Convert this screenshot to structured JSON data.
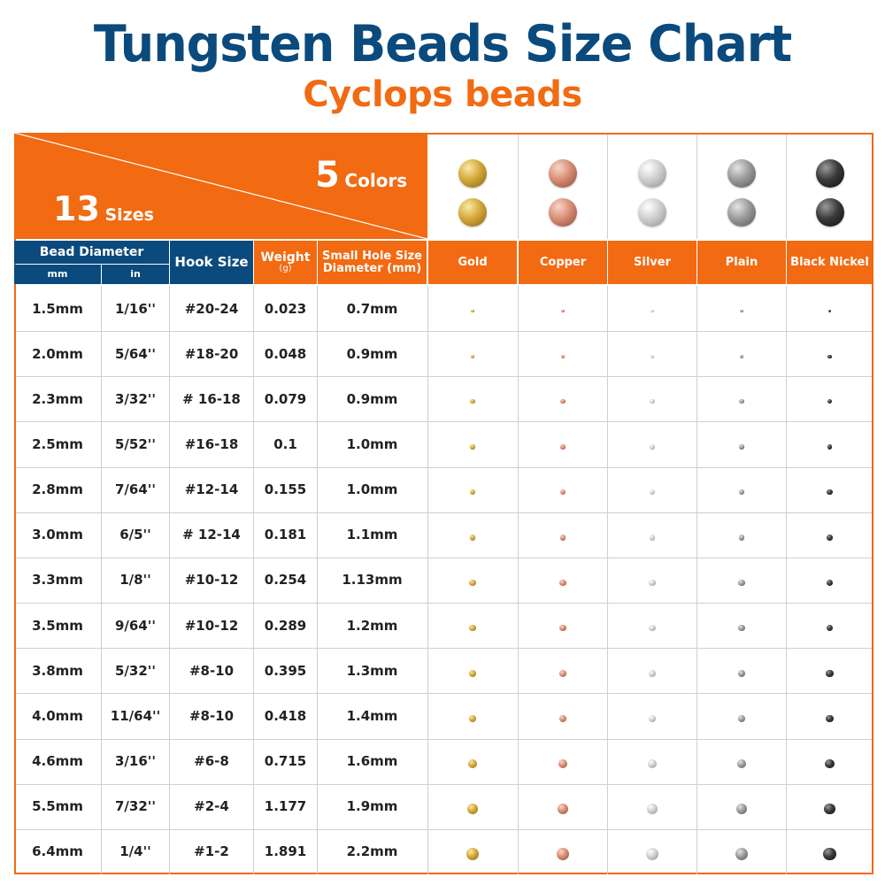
{
  "title": "Tungsten Beads Size Chart",
  "subtitle": "Cyclops beads",
  "corner": {
    "colors_num": "5",
    "colors_word": "Colors",
    "sizes_num": "13",
    "sizes_word": "Sizes"
  },
  "headers": {
    "bead_diameter": "Bead Diameter",
    "mm": "mm",
    "in": "in",
    "hook_size": "Hook Size",
    "weight": "Weight",
    "weight_unit": "(g)",
    "hole_line1": "Small Hole Size",
    "hole_line2": "Diameter (mm)"
  },
  "colors": [
    {
      "name": "Gold",
      "hex": "#d4a83a",
      "light": "#fbe9a8",
      "dark": "#8a6410"
    },
    {
      "name": "Copper",
      "hex": "#d88d76",
      "light": "#f8d6c8",
      "dark": "#8c4a36"
    },
    {
      "name": "Silver",
      "hex": "#cfcfcf",
      "light": "#ffffff",
      "dark": "#8f8f8f"
    },
    {
      "name": "Plain",
      "hex": "#9a9a9a",
      "light": "#e4e4e4",
      "dark": "#555555"
    },
    {
      "name": "Black Nickel",
      "hex": "#3a3a3a",
      "light": "#9a9a9a",
      "dark": "#0e0e0e"
    }
  ],
  "rows": [
    {
      "mm": "1.5mm",
      "in": "1/16''",
      "hook": "#20-24",
      "weight": "0.023",
      "hole": "0.7mm"
    },
    {
      "mm": "2.0mm",
      "in": "5/64''",
      "hook": "#18-20",
      "weight": "0.048",
      "hole": "0.9mm"
    },
    {
      "mm": "2.3mm",
      "in": "3/32''",
      "hook": "# 16-18",
      "weight": "0.079",
      "hole": "0.9mm"
    },
    {
      "mm": "2.5mm",
      "in": "5/52''",
      "hook": "#16-18",
      "weight": "0.1",
      "hole": "1.0mm"
    },
    {
      "mm": "2.8mm",
      "in": "7/64''",
      "hook": "#12-14",
      "weight": "0.155",
      "hole": "1.0mm"
    },
    {
      "mm": "3.0mm",
      "in": "6/5''",
      "hook": "# 12-14",
      "weight": "0.181",
      "hole": "1.1mm"
    },
    {
      "mm": "3.3mm",
      "in": "1/8''",
      "hook": "#10-12",
      "weight": "0.254",
      "hole": "1.13mm"
    },
    {
      "mm": "3.5mm",
      "in": "9/64''",
      "hook": "#10-12",
      "weight": "0.289",
      "hole": "1.2mm"
    },
    {
      "mm": "3.8mm",
      "in": "5/32''",
      "hook": "#8-10",
      "weight": "0.395",
      "hole": "1.3mm"
    },
    {
      "mm": "4.0mm",
      "in": "11/64''",
      "hook": "#8-10",
      "weight": "0.418",
      "hole": "1.4mm"
    },
    {
      "mm": "4.6mm",
      "in": "3/16''",
      "hook": "#6-8",
      "weight": "0.715",
      "hole": "1.6mm"
    },
    {
      "mm": "5.5mm",
      "in": "7/32''",
      "hook": "#2-4",
      "weight": "1.177",
      "hole": "1.9mm"
    },
    {
      "mm": "6.4mm",
      "in": "1/4''",
      "hook": "#1-2",
      "weight": "1.891",
      "hole": "2.2mm"
    }
  ]
}
